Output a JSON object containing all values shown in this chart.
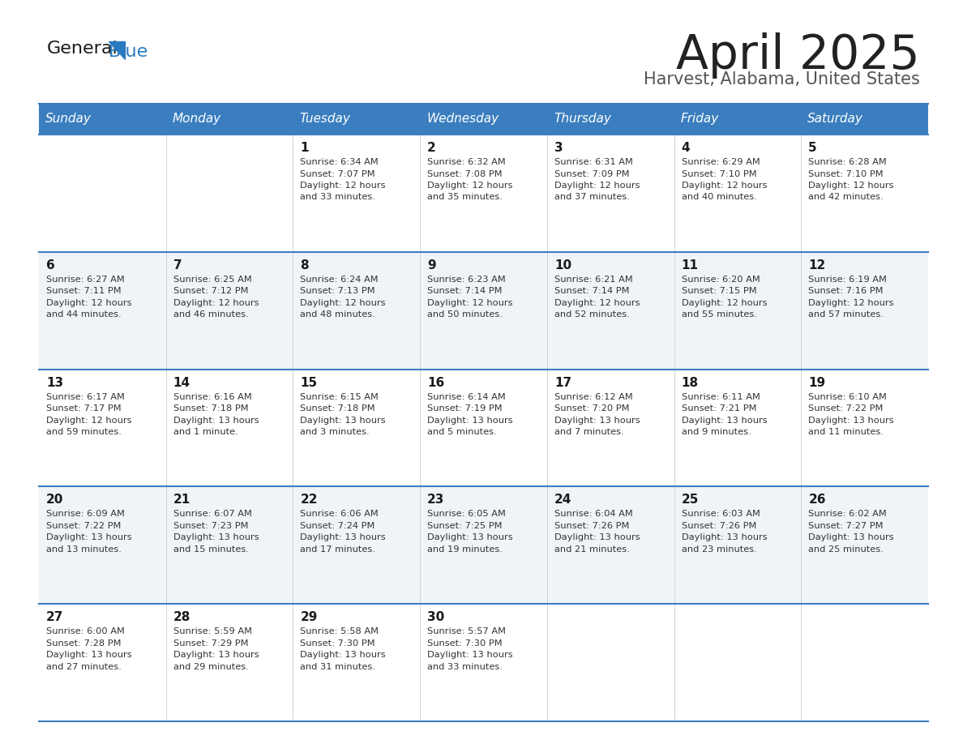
{
  "title": "April 2025",
  "subtitle": "Harvest, Alabama, United States",
  "header_bg_color": "#3a7ebf",
  "header_text_color": "#ffffff",
  "day_names": [
    "Sunday",
    "Monday",
    "Tuesday",
    "Wednesday",
    "Thursday",
    "Friday",
    "Saturday"
  ],
  "cell_bg_light": "#f0f4f8",
  "cell_bg_white": "#ffffff",
  "title_color": "#222222",
  "subtitle_color": "#555555",
  "day_number_color": "#1a1a1a",
  "text_color": "#333333",
  "divider_color": "#3a7ebf",
  "logo_general_color": "#1a1a1a",
  "logo_blue_color": "#2a7abf",
  "weeks": [
    [
      {
        "date": "",
        "sunrise": "",
        "sunset": "",
        "daylight": ""
      },
      {
        "date": "",
        "sunrise": "",
        "sunset": "",
        "daylight": ""
      },
      {
        "date": "1",
        "sunrise": "6:34 AM",
        "sunset": "7:07 PM",
        "daylight": "12 hours and 33 minutes."
      },
      {
        "date": "2",
        "sunrise": "6:32 AM",
        "sunset": "7:08 PM",
        "daylight": "12 hours and 35 minutes."
      },
      {
        "date": "3",
        "sunrise": "6:31 AM",
        "sunset": "7:09 PM",
        "daylight": "12 hours and 37 minutes."
      },
      {
        "date": "4",
        "sunrise": "6:29 AM",
        "sunset": "7:10 PM",
        "daylight": "12 hours and 40 minutes."
      },
      {
        "date": "5",
        "sunrise": "6:28 AM",
        "sunset": "7:10 PM",
        "daylight": "12 hours and 42 minutes."
      }
    ],
    [
      {
        "date": "6",
        "sunrise": "6:27 AM",
        "sunset": "7:11 PM",
        "daylight": "12 hours and 44 minutes."
      },
      {
        "date": "7",
        "sunrise": "6:25 AM",
        "sunset": "7:12 PM",
        "daylight": "12 hours and 46 minutes."
      },
      {
        "date": "8",
        "sunrise": "6:24 AM",
        "sunset": "7:13 PM",
        "daylight": "12 hours and 48 minutes."
      },
      {
        "date": "9",
        "sunrise": "6:23 AM",
        "sunset": "7:14 PM",
        "daylight": "12 hours and 50 minutes."
      },
      {
        "date": "10",
        "sunrise": "6:21 AM",
        "sunset": "7:14 PM",
        "daylight": "12 hours and 52 minutes."
      },
      {
        "date": "11",
        "sunrise": "6:20 AM",
        "sunset": "7:15 PM",
        "daylight": "12 hours and 55 minutes."
      },
      {
        "date": "12",
        "sunrise": "6:19 AM",
        "sunset": "7:16 PM",
        "daylight": "12 hours and 57 minutes."
      }
    ],
    [
      {
        "date": "13",
        "sunrise": "6:17 AM",
        "sunset": "7:17 PM",
        "daylight": "12 hours and 59 minutes."
      },
      {
        "date": "14",
        "sunrise": "6:16 AM",
        "sunset": "7:18 PM",
        "daylight": "13 hours and 1 minute."
      },
      {
        "date": "15",
        "sunrise": "6:15 AM",
        "sunset": "7:18 PM",
        "daylight": "13 hours and 3 minutes."
      },
      {
        "date": "16",
        "sunrise": "6:14 AM",
        "sunset": "7:19 PM",
        "daylight": "13 hours and 5 minutes."
      },
      {
        "date": "17",
        "sunrise": "6:12 AM",
        "sunset": "7:20 PM",
        "daylight": "13 hours and 7 minutes."
      },
      {
        "date": "18",
        "sunrise": "6:11 AM",
        "sunset": "7:21 PM",
        "daylight": "13 hours and 9 minutes."
      },
      {
        "date": "19",
        "sunrise": "6:10 AM",
        "sunset": "7:22 PM",
        "daylight": "13 hours and 11 minutes."
      }
    ],
    [
      {
        "date": "20",
        "sunrise": "6:09 AM",
        "sunset": "7:22 PM",
        "daylight": "13 hours and 13 minutes."
      },
      {
        "date": "21",
        "sunrise": "6:07 AM",
        "sunset": "7:23 PM",
        "daylight": "13 hours and 15 minutes."
      },
      {
        "date": "22",
        "sunrise": "6:06 AM",
        "sunset": "7:24 PM",
        "daylight": "13 hours and 17 minutes."
      },
      {
        "date": "23",
        "sunrise": "6:05 AM",
        "sunset": "7:25 PM",
        "daylight": "13 hours and 19 minutes."
      },
      {
        "date": "24",
        "sunrise": "6:04 AM",
        "sunset": "7:26 PM",
        "daylight": "13 hours and 21 minutes."
      },
      {
        "date": "25",
        "sunrise": "6:03 AM",
        "sunset": "7:26 PM",
        "daylight": "13 hours and 23 minutes."
      },
      {
        "date": "26",
        "sunrise": "6:02 AM",
        "sunset": "7:27 PM",
        "daylight": "13 hours and 25 minutes."
      }
    ],
    [
      {
        "date": "27",
        "sunrise": "6:00 AM",
        "sunset": "7:28 PM",
        "daylight": "13 hours and 27 minutes."
      },
      {
        "date": "28",
        "sunrise": "5:59 AM",
        "sunset": "7:29 PM",
        "daylight": "13 hours and 29 minutes."
      },
      {
        "date": "29",
        "sunrise": "5:58 AM",
        "sunset": "7:30 PM",
        "daylight": "13 hours and 31 minutes."
      },
      {
        "date": "30",
        "sunrise": "5:57 AM",
        "sunset": "7:30 PM",
        "daylight": "13 hours and 33 minutes."
      },
      {
        "date": "",
        "sunrise": "",
        "sunset": "",
        "daylight": ""
      },
      {
        "date": "",
        "sunrise": "",
        "sunset": "",
        "daylight": ""
      },
      {
        "date": "",
        "sunrise": "",
        "sunset": "",
        "daylight": ""
      }
    ]
  ]
}
